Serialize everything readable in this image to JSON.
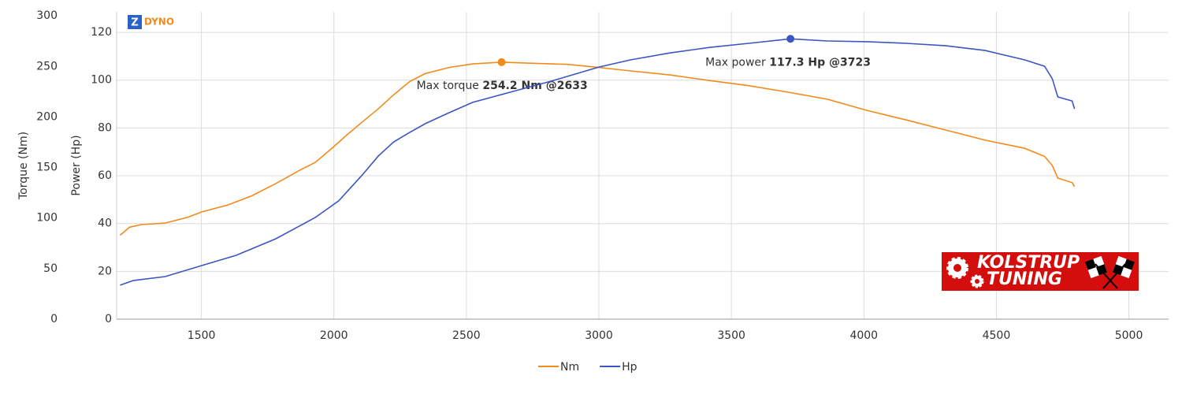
{
  "chart_data": {
    "type": "line",
    "brand": {
      "z": "Z",
      "name": "DYNO"
    },
    "sponsor": {
      "line1": "KOLSTRUP",
      "line2": "TUNING"
    },
    "xlim": [
      1180,
      5150
    ],
    "xticks": [
      1500,
      2000,
      2500,
      3000,
      3500,
      4000,
      4500,
      5000
    ],
    "ylabel": "Torque (Nm)",
    "ylim": [
      0,
      304
    ],
    "yticks": [
      0,
      50,
      100,
      150,
      200,
      250,
      300
    ],
    "y2label": "Power (Hp)",
    "y2lim": [
      0,
      128.6
    ],
    "y2ticks": [
      0,
      20,
      40,
      60,
      80,
      100,
      120
    ],
    "grid": true,
    "legend": "bottom",
    "series": [
      {
        "name": "Nm",
        "color": "#f28a1c",
        "axis": "y",
        "x": [
          1193,
          1229,
          1274,
          1363,
          1452,
          1500,
          1601,
          1690,
          1780,
          1869,
          1929,
          1988,
          2048,
          2107,
          2167,
          2226,
          2286,
          2345,
          2435,
          2524,
          2633,
          2762,
          2881,
          3000,
          3119,
          3268,
          3417,
          3565,
          3714,
          3863,
          4012,
          4161,
          4310,
          4458,
          4607,
          4682,
          4711,
          4732,
          4786,
          4795
        ],
        "values": [
          83,
          91,
          93.5,
          95,
          101,
          106,
          113,
          122,
          134,
          147,
          155,
          168,
          182,
          195,
          208,
          222,
          235,
          243,
          249,
          252.5,
          254.2,
          253,
          252,
          249,
          245.5,
          241.6,
          236,
          231,
          224.5,
          217.5,
          206.5,
          197,
          187,
          177,
          169,
          161,
          152,
          139.5,
          135,
          131
        ],
        "annotation": {
          "label": "Max torque",
          "value_label": "254.2 Nm @2633"
        }
      },
      {
        "name": "Hp",
        "color": "#3b55c4",
        "axis": "y2",
        "x": [
          1193,
          1244,
          1363,
          1500,
          1631,
          1780,
          1929,
          2018,
          2107,
          2167,
          2226,
          2286,
          2345,
          2435,
          2524,
          2643,
          2821,
          3000,
          3119,
          3268,
          3417,
          3565,
          3723,
          3863,
          4012,
          4161,
          4310,
          4458,
          4607,
          4682,
          4711,
          4732,
          4786,
          4795
        ],
        "values": [
          14.2,
          16.2,
          17.8,
          22.4,
          26.7,
          33.6,
          42.5,
          49.5,
          60.3,
          68.2,
          74.2,
          78.1,
          81.8,
          86.4,
          90.7,
          94.3,
          99.6,
          105.5,
          108.5,
          111.4,
          113.7,
          115.4,
          117.3,
          116.4,
          116.1,
          115.4,
          114.4,
          112.4,
          108.5,
          105.8,
          100.6,
          93,
          91.3,
          88
        ],
        "annotation": {
          "label": "Max power",
          "value_label": "117.3 Hp @3723"
        }
      }
    ]
  }
}
